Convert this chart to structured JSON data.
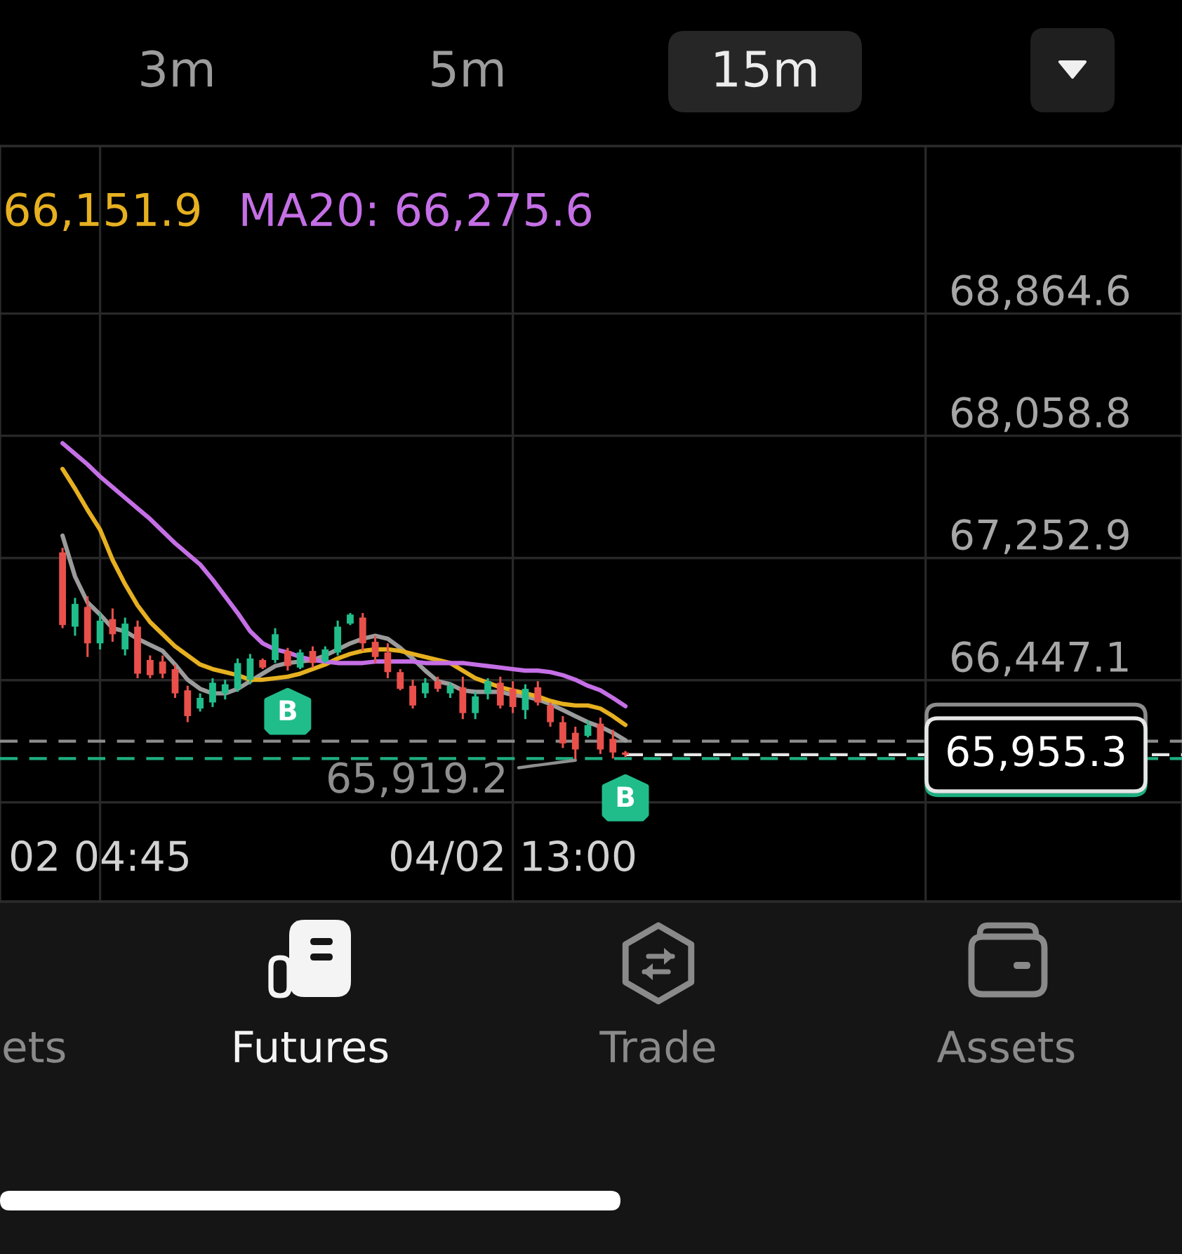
{
  "chart_data": {
    "type": "candlestick",
    "categories": [
      null,
      null,
      null,
      "02 04:45",
      null,
      null,
      null,
      null,
      null,
      null,
      null,
      null,
      null,
      null,
      null,
      null,
      null,
      null,
      null,
      null,
      null,
      null,
      null,
      null,
      null,
      null,
      null,
      null,
      null,
      null,
      null,
      null,
      null,
      null,
      null,
      null,
      "04/02 13:00",
      null,
      null,
      null,
      null,
      null,
      null,
      null,
      null,
      null,
      null,
      null,
      null,
      null,
      null,
      null,
      null,
      null,
      null,
      null,
      null,
      null,
      null,
      null,
      null,
      null,
      null,
      null,
      null,
      null,
      null,
      null,
      null,
      null,
      null,
      null,
      null,
      null,
      null,
      null,
      null,
      null,
      null,
      null,
      null,
      null,
      null,
      null,
      null,
      null,
      null,
      null,
      null,
      null
    ],
    "ohlc": [
      [
        67290,
        67320,
        66790,
        66810
      ],
      [
        66800,
        66990,
        66740,
        66950
      ],
      [
        66930,
        67000,
        66600,
        66690
      ],
      [
        66690,
        66890,
        66650,
        66840
      ],
      [
        66850,
        66920,
        66700,
        66750
      ],
      [
        66650,
        66860,
        66610,
        66820
      ],
      [
        66800,
        66840,
        66460,
        66490
      ],
      [
        66580,
        66610,
        66460,
        66480
      ],
      [
        66570,
        66610,
        66460,
        66490
      ],
      [
        66520,
        66550,
        66330,
        66360
      ],
      [
        66380,
        66410,
        66170,
        66210
      ],
      [
        66260,
        66360,
        66240,
        66330
      ],
      [
        66300,
        66460,
        66270,
        66430
      ],
      [
        66360,
        66450,
        66320,
        66420
      ],
      [
        66390,
        66590,
        66370,
        66560
      ],
      [
        66450,
        66620,
        66420,
        66590
      ],
      [
        66580,
        66590,
        66520,
        66530
      ],
      [
        66580,
        66790,
        66560,
        66750
      ],
      [
        66640,
        66660,
        66510,
        66540
      ],
      [
        66530,
        66650,
        66520,
        66630
      ],
      [
        66640,
        66670,
        66530,
        66560
      ],
      [
        66570,
        66670,
        66560,
        66650
      ],
      [
        66630,
        66840,
        66610,
        66800
      ],
      [
        66820,
        66890,
        66810,
        66880
      ],
      [
        66860,
        66890,
        66640,
        66690
      ],
      [
        66700,
        66740,
        66560,
        66600
      ],
      [
        66630,
        66690,
        66460,
        66500
      ],
      [
        66500,
        66520,
        66380,
        66390
      ],
      [
        66410,
        66450,
        66260,
        66280
      ],
      [
        66360,
        66460,
        66330,
        66430
      ],
      [
        66440,
        66470,
        66370,
        66390
      ],
      [
        66360,
        66430,
        66330,
        66410
      ],
      [
        66400,
        66470,
        66190,
        66230
      ],
      [
        66230,
        66370,
        66190,
        66340
      ],
      [
        66360,
        66460,
        66320,
        66440
      ],
      [
        66430,
        66470,
        66260,
        66280
      ],
      [
        66390,
        66440,
        66230,
        66270
      ],
      [
        66250,
        66420,
        66190,
        66390
      ],
      [
        66400,
        66440,
        66280,
        66300
      ],
      [
        66280,
        66300,
        66140,
        66170
      ],
      [
        66170,
        66210,
        66000,
        66030
      ],
      [
        66100,
        66140,
        65919.2,
        65990
      ],
      [
        66080,
        66180,
        66070,
        66150
      ],
      [
        66160,
        66200,
        65960,
        65990
      ],
      [
        66060,
        66120,
        65930,
        65970
      ],
      [
        65970,
        65980,
        65940,
        65955.3
      ],
      null,
      null,
      null,
      null,
      null,
      null,
      null,
      null,
      null,
      null,
      null,
      null,
      null,
      null,
      null,
      null,
      null,
      null,
      null,
      null,
      null,
      null,
      null,
      null,
      null,
      null,
      null,
      null,
      null,
      null,
      null,
      null,
      null,
      null,
      null,
      null,
      null,
      null,
      null,
      null,
      null,
      null,
      null,
      null
    ],
    "colors": [
      "#e9504b",
      "#20bd8b",
      "#e9504b",
      "#20bd8b",
      "#e9504b",
      "#20bd8b",
      "#e9504b",
      "#e9504b",
      "#e9504b",
      "#e9504b",
      "#e9504b",
      "#20bd8b",
      "#20bd8b",
      "#20bd8b",
      "#20bd8b",
      "#20bd8b",
      "#e9504b",
      "#20bd8b",
      "#e9504b",
      "#20bd8b",
      "#e9504b",
      "#20bd8b",
      "#20bd8b",
      "#20bd8b",
      "#e9504b",
      "#e9504b",
      "#e9504b",
      "#e9504b",
      "#e9504b",
      "#20bd8b",
      "#e9504b",
      "#20bd8b",
      "#e9504b",
      "#20bd8b",
      "#20bd8b",
      "#e9504b",
      "#e9504b",
      "#20bd8b",
      "#e9504b",
      "#e9504b",
      "#e9504b",
      "#e9504b",
      "#20bd8b",
      "#e9504b",
      "#e9504b",
      "#e9504b",
      null,
      null,
      null,
      null,
      null,
      null,
      null,
      null,
      null,
      null,
      null,
      null,
      null,
      null,
      null,
      null,
      null,
      null,
      null,
      null,
      null,
      null,
      null,
      null,
      null,
      null,
      null,
      null,
      null,
      null,
      null,
      null,
      null,
      null,
      null,
      null,
      null,
      null,
      null,
      null,
      null,
      null,
      null,
      null
    ],
    "series": [
      {
        "type": "line",
        "color": "#9b9b9b",
        "values": [
          67400,
          67130,
          66960,
          66880,
          66790,
          66770,
          66720,
          66680,
          66640,
          66550,
          66450,
          66390,
          66360,
          66360,
          66390,
          66440,
          66490,
          66540,
          66560,
          66570,
          66580,
          66610,
          66650,
          66690,
          66720,
          66740,
          66720,
          66660,
          66590,
          66510,
          66440,
          66420,
          66380,
          66370,
          66370,
          66370,
          66350,
          66340,
          66320,
          66290,
          66250,
          66210,
          66170,
          66140,
          66100,
          66050,
          null,
          null,
          null,
          null,
          null,
          null,
          null,
          null,
          null,
          null,
          null,
          null,
          null,
          null,
          null,
          null,
          null,
          null,
          null,
          null,
          null,
          null,
          null,
          null,
          null,
          null,
          null,
          null,
          null,
          null,
          null,
          null,
          null,
          null,
          null,
          null,
          null,
          null,
          null,
          null,
          null,
          null,
          null,
          null
        ]
      },
      {
        "type": "line",
        "name": "66,151.9",
        "color": "#e6b020",
        "values": [
          67840,
          67710,
          67570,
          67440,
          67240,
          67080,
          66940,
          66830,
          66750,
          66670,
          66610,
          66550,
          66520,
          66500,
          66480,
          66450,
          66450,
          66460,
          66470,
          66490,
          66520,
          66550,
          66590,
          66620,
          66640,
          66650,
          66650,
          66640,
          66620,
          66600,
          66580,
          66560,
          66510,
          66460,
          66430,
          66400,
          66380,
          66360,
          66340,
          66310,
          66290,
          66280,
          66280,
          66260,
          66210,
          66151.9,
          null,
          null,
          null,
          null,
          null,
          null,
          null,
          null,
          null,
          null,
          null,
          null,
          null,
          null,
          null,
          null,
          null,
          null,
          null,
          null,
          null,
          null,
          null,
          null,
          null,
          null,
          null,
          null,
          null,
          null,
          null,
          null,
          null,
          null,
          null,
          null,
          null,
          null,
          null,
          null,
          null,
          null,
          null,
          null
        ]
      },
      {
        "type": "line",
        "name": "MA20: 66,275.6",
        "color": "#c56fe6",
        "values": [
          68010,
          67940,
          67870,
          67790,
          67720,
          67650,
          67580,
          67510,
          67430,
          67350,
          67280,
          67210,
          67110,
          67000,
          66890,
          66770,
          66690,
          66650,
          66630,
          66600,
          66580,
          66570,
          66560,
          66560,
          66560,
          66570,
          66570,
          66570,
          66570,
          66560,
          66560,
          66560,
          66560,
          66550,
          66540,
          66530,
          66520,
          66510,
          66510,
          66500,
          66480,
          66450,
          66410,
          66380,
          66330,
          66275.6,
          null,
          null,
          null,
          null,
          null,
          null,
          null,
          null,
          null,
          null,
          null,
          null,
          null,
          null,
          null,
          null,
          null,
          null,
          null,
          null,
          null,
          null,
          null,
          null,
          null,
          null,
          null,
          null,
          null,
          null,
          null,
          null,
          null,
          null,
          null,
          null,
          null,
          null,
          null,
          null,
          null,
          null,
          null,
          null
        ]
      }
    ],
    "ylim": [
      64987,
      69970
    ],
    "yticks": [
      {
        "value": 65641.3,
        "label": null
      },
      {
        "value": 66447.1,
        "label": "66,447.1"
      },
      {
        "value": 67252.9,
        "label": "67,252.9"
      },
      {
        "value": 68058.8,
        "label": "68,058.8"
      },
      {
        "value": 68864.6,
        "label": "68,864.6"
      }
    ],
    "ref_lines": [
      {
        "axis": "y",
        "value": 66045,
        "color": "#8c8c8c",
        "line_style": "dashed"
      },
      {
        "axis": "y",
        "value": 65930,
        "color": "#1fae80",
        "line_style": "dashed"
      },
      {
        "axis": "y",
        "value": 65955.3,
        "label": "65,955.3",
        "color": "#e6e6e6",
        "line_style": "dashed"
      }
    ],
    "annotations": [
      {
        "text": "65,919.2",
        "y": 65919.2
      },
      {
        "text": "B",
        "y": 66510
      },
      {
        "text": "B",
        "y": 65940
      },
      "3m",
      "5m",
      "15m",
      "ets",
      "Futures",
      "Trade",
      "Assets"
    ],
    "grid": true,
    "legend": "top left"
  }
}
